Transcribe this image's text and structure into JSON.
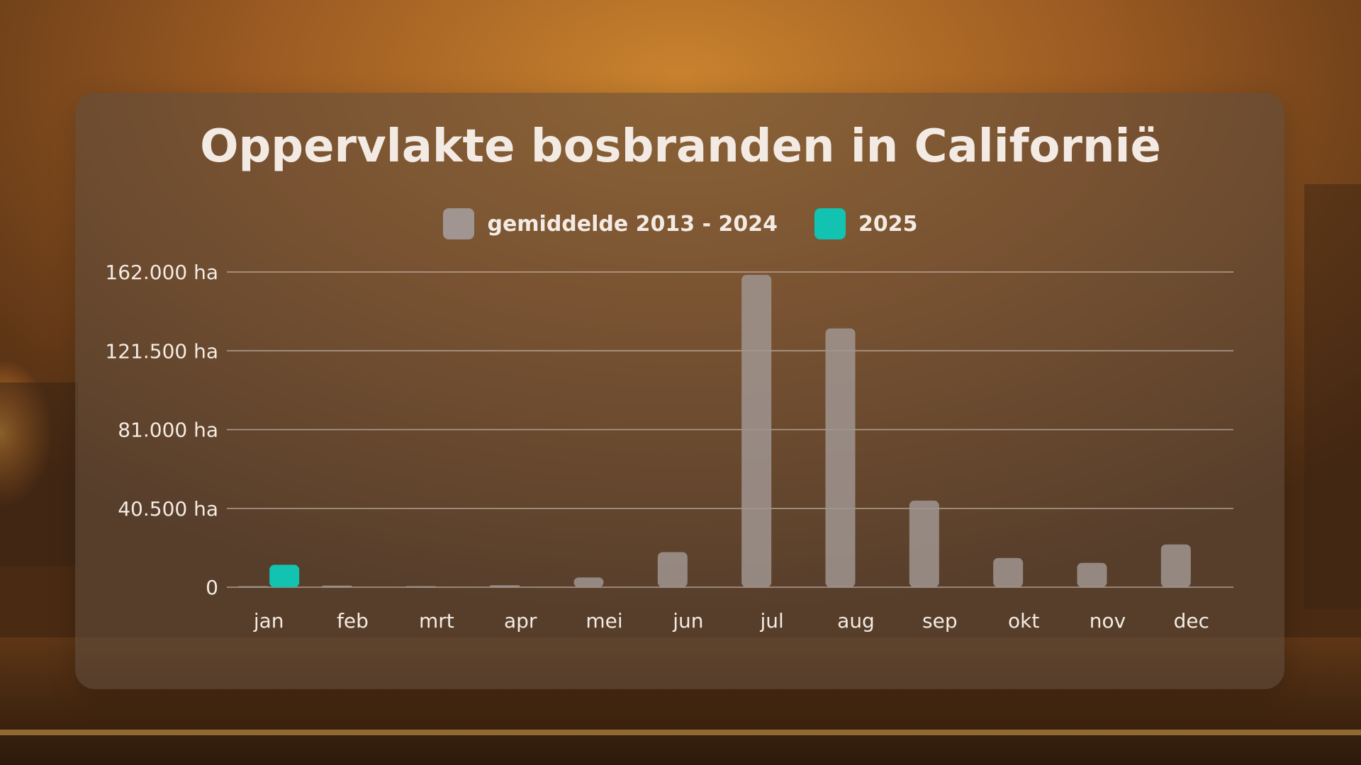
{
  "colors": {
    "average": "#a09590",
    "year2025": "#12c3b1",
    "grid": "#c9bcb0",
    "text": "#f3ebe3"
  },
  "chart_data": {
    "type": "bar",
    "title": "Oppervlakte bosbranden in Californië",
    "categories": [
      "jan",
      "feb",
      "mrt",
      "apr",
      "mei",
      "jun",
      "jul",
      "aug",
      "sep",
      "okt",
      "nov",
      "dec"
    ],
    "series": [
      {
        "name": "gemiddelde 2013 - 2024",
        "color": "#a09590",
        "values": [
          500,
          800,
          100,
          1000,
          5000,
          18000,
          160500,
          133000,
          44500,
          15000,
          12500,
          22000
        ]
      },
      {
        "name": "2025",
        "color": "#12c3b1",
        "values": [
          11500,
          null,
          null,
          null,
          null,
          null,
          null,
          null,
          null,
          null,
          null,
          null
        ]
      }
    ],
    "yticks": [
      {
        "value": 0,
        "label": "0"
      },
      {
        "value": 40500,
        "label": "40.500 ha"
      },
      {
        "value": 81000,
        "label": "81.000 ha"
      },
      {
        "value": 121500,
        "label": "121.500 ha"
      },
      {
        "value": 162000,
        "label": "162.000 ha"
      }
    ],
    "ylim": [
      0,
      162000
    ],
    "grid": true,
    "legend_position": "top-center"
  }
}
